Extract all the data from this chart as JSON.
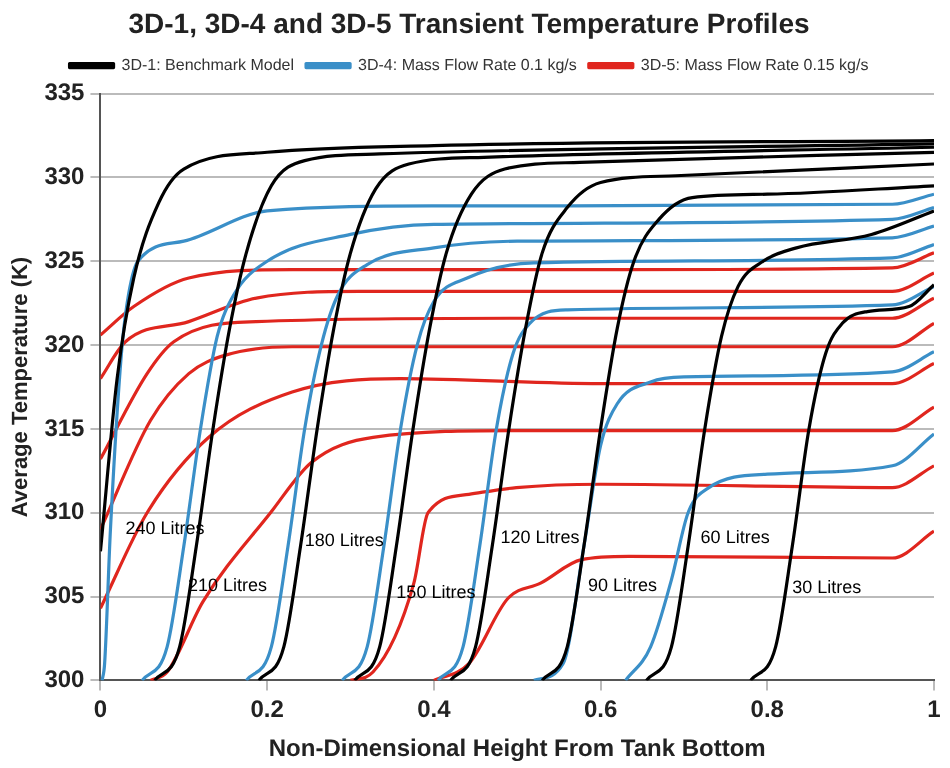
{
  "chart_data": {
    "type": "line",
    "title": "3D-1, 3D-4 and 3D-5 Transient Temperature Profiles",
    "xlabel": "Non-Dimensional Height From Tank Bottom",
    "ylabel": "Average Temperature (K)",
    "xlim": [
      0,
      1
    ],
    "xticks": [
      0,
      0.2,
      0.4,
      0.6,
      0.8,
      1
    ],
    "ylim": [
      300,
      335
    ],
    "yticks": [
      300,
      305,
      310,
      315,
      320,
      325,
      330,
      335
    ],
    "grid": "y",
    "legend": "top",
    "marker": "none",
    "line_style": "solid",
    "series": [
      {
        "name": "3D-1: Benchmark Model",
        "color": "#000000",
        "x": [
          0,
          0.02,
          0.04,
          0.07,
          0.1,
          0.2,
          0.4,
          1
        ],
        "values": [
          307.7,
          318,
          324,
          328.5,
          330.5,
          331.5,
          331.9,
          332.2
        ]
      },
      {
        "color": "#000000",
        "x": [
          0.065,
          0.095,
          0.115,
          0.135,
          0.155,
          0.175,
          0.205,
          0.245,
          0.335,
          1
        ],
        "values": [
          300,
          302,
          308,
          315,
          321,
          325.5,
          329.5,
          331,
          331.4,
          332
        ]
      },
      {
        "color": "#000000",
        "x": [
          0.19,
          0.22,
          0.24,
          0.26,
          0.28,
          0.3,
          0.33,
          0.37,
          0.46,
          1
        ],
        "values": [
          300,
          302,
          308,
          315,
          321,
          325.5,
          329.3,
          330.8,
          331.2,
          331.8
        ]
      },
      {
        "color": "#000000",
        "x": [
          0.305,
          0.335,
          0.355,
          0.375,
          0.395,
          0.415,
          0.445,
          0.485,
          0.575,
          1
        ],
        "values": [
          300,
          302,
          308,
          315,
          321,
          325.5,
          329,
          330.5,
          330.9,
          331.5
        ]
      },
      {
        "color": "#000000",
        "x": [
          0.42,
          0.45,
          0.47,
          0.49,
          0.51,
          0.53,
          0.56,
          0.6,
          0.69,
          1
        ],
        "values": [
          300,
          302,
          308,
          315,
          321,
          325.5,
          328.2,
          329.7,
          330.1,
          330.8
        ]
      },
      {
        "color": "#000000",
        "x": [
          0.53,
          0.56,
          0.58,
          0.6,
          0.62,
          0.64,
          0.67,
          0.71,
          0.8,
          1
        ],
        "values": [
          300,
          302,
          308,
          315,
          321,
          325,
          327.5,
          328.8,
          329,
          329.5
        ]
      },
      {
        "color": "#000000",
        "x": [
          0.655,
          0.685,
          0.705,
          0.725,
          0.745,
          0.765,
          0.795,
          0.835,
          0.925,
          1
        ],
        "values": [
          300,
          302,
          308,
          315,
          320.5,
          323.5,
          325,
          325.8,
          326.6,
          328
        ]
      },
      {
        "color": "#000000",
        "x": [
          0.78,
          0.81,
          0.83,
          0.85,
          0.87,
          0.89,
          0.92,
          0.97,
          1
        ],
        "values": [
          300,
          302,
          308,
          315,
          319.5,
          321.3,
          322,
          322.3,
          323.6
        ]
      },
      {
        "name": "3D-4: Mass Flow Rate 0.1 kg/s",
        "color": "#3a8fc8",
        "x": [
          0.002,
          0.005,
          0.012,
          0.025,
          0.032,
          0.045,
          0.1,
          0.2,
          0.4,
          0.95,
          1
        ],
        "values": [
          300,
          301,
          309,
          319.4,
          322.5,
          325,
          326.2,
          328,
          328.3,
          328.4,
          329
        ]
      },
      {
        "color": "#3a8fc8",
        "x": [
          0.05,
          0.08,
          0.1,
          0.12,
          0.14,
          0.16,
          0.2,
          0.3,
          0.4,
          0.95,
          1
        ],
        "values": [
          300,
          302,
          308,
          315,
          320.5,
          323,
          325,
          326.6,
          327.2,
          327.5,
          328.2
        ]
      },
      {
        "color": "#3a8fc8",
        "x": [
          0.175,
          0.205,
          0.225,
          0.245,
          0.265,
          0.285,
          0.32,
          0.4,
          0.5,
          0.95,
          1
        ],
        "values": [
          300,
          302,
          308,
          315,
          320,
          323,
          324.8,
          325.8,
          326.2,
          326.4,
          327.1
        ]
      },
      {
        "color": "#3a8fc8",
        "x": [
          0.29,
          0.32,
          0.34,
          0.36,
          0.38,
          0.4,
          0.44,
          0.52,
          0.95,
          1
        ],
        "values": [
          300,
          302,
          308,
          315,
          320,
          322.6,
          324,
          324.9,
          325.2,
          326
        ]
      },
      {
        "color": "#3a8fc8",
        "x": [
          0.405,
          0.435,
          0.455,
          0.475,
          0.495,
          0.515,
          0.56,
          0.95,
          1
        ],
        "values": [
          300,
          302,
          308,
          315,
          319.5,
          321.3,
          322.1,
          322.4,
          323.5
        ]
      },
      {
        "color": "#3a8fc8",
        "x": [
          0.52,
          0.555,
          0.58,
          0.6,
          0.62,
          0.66,
          0.7,
          0.95,
          1
        ],
        "values": [
          300,
          301,
          308,
          314,
          316.5,
          317.8,
          318.1,
          318.4,
          319.6
        ]
      },
      {
        "color": "#3a8fc8",
        "x": [
          0.63,
          0.66,
          0.685,
          0.705,
          0.73,
          0.8,
          0.95,
          1
        ],
        "values": [
          300,
          302,
          306,
          310,
          311.5,
          312.3,
          312.8,
          314.7
        ]
      },
      {
        "name": "3D-5: Mass Flow Rate 0.15 kg/s",
        "color": "#e0261e",
        "x": [
          0,
          0.04,
          0.106,
          0.23,
          0.6,
          0.95,
          1
        ],
        "values": [
          320.6,
          322.3,
          324,
          324.5,
          324.5,
          324.6,
          325.5
        ]
      },
      {
        "color": "#e0261e",
        "x": [
          0,
          0.03,
          0.106,
          0.187,
          0.31,
          0.95,
          1
        ],
        "values": [
          318,
          320.2,
          321.4,
          322.8,
          323.2,
          323.2,
          324.3
        ]
      },
      {
        "color": "#e0261e",
        "x": [
          0,
          0.056,
          0.088,
          0.187,
          0.5,
          0.95,
          1
        ],
        "values": [
          313.2,
          318.3,
          320.2,
          321.4,
          321.6,
          321.6,
          322.8
        ]
      },
      {
        "color": "#e0261e",
        "x": [
          0,
          0.06,
          0.106,
          0.15,
          0.23,
          0.95,
          1
        ],
        "values": [
          309,
          315.5,
          318.3,
          319.4,
          319.9,
          319.9,
          321.3
        ]
      },
      {
        "color": "#e0261e",
        "x": [
          0,
          0.056,
          0.13,
          0.23,
          0.36,
          0.6,
          0.95,
          1
        ],
        "values": [
          304.3,
          310,
          314.5,
          317.2,
          318,
          317.7,
          317.7,
          318.9
        ]
      },
      {
        "color": "#e0261e",
        "x": [
          0.06,
          0.08,
          0.123,
          0.204,
          0.253,
          0.327,
          0.5,
          0.95,
          1
        ],
        "values": [
          300,
          300.5,
          304.7,
          310,
          313,
          314.5,
          314.9,
          314.9,
          316.3
        ]
      },
      {
        "color": "#e0261e",
        "x": [
          0.3,
          0.327,
          0.376,
          0.393,
          0.442,
          0.499,
          0.6,
          0.95,
          1
        ],
        "values": [
          300,
          300.5,
          305.8,
          310,
          311.1,
          311.5,
          311.7,
          311.5,
          312.8
        ]
      },
      {
        "color": "#e0261e",
        "x": [
          0.4,
          0.442,
          0.489,
          0.528,
          0.577,
          0.634,
          0.95,
          1
        ],
        "values": [
          300,
          301,
          304.9,
          305.8,
          307.2,
          307.4,
          307.3,
          308.9
        ]
      }
    ],
    "annotations": [
      {
        "text": "240 Litres",
        "x": 0.03,
        "y": 309
      },
      {
        "text": "210 Litres",
        "x": 0.105,
        "y": 305.6
      },
      {
        "text": "180 Litres",
        "x": 0.245,
        "y": 308.3
      },
      {
        "text": "150 Litres",
        "x": 0.355,
        "y": 305.2
      },
      {
        "text": "120 Litres",
        "x": 0.48,
        "y": 308.5
      },
      {
        "text": "90 Litres",
        "x": 0.585,
        "y": 305.6
      },
      {
        "text": "60 Litres",
        "x": 0.72,
        "y": 308.5
      },
      {
        "text": "30 Litres",
        "x": 0.83,
        "y": 305.5
      }
    ]
  }
}
